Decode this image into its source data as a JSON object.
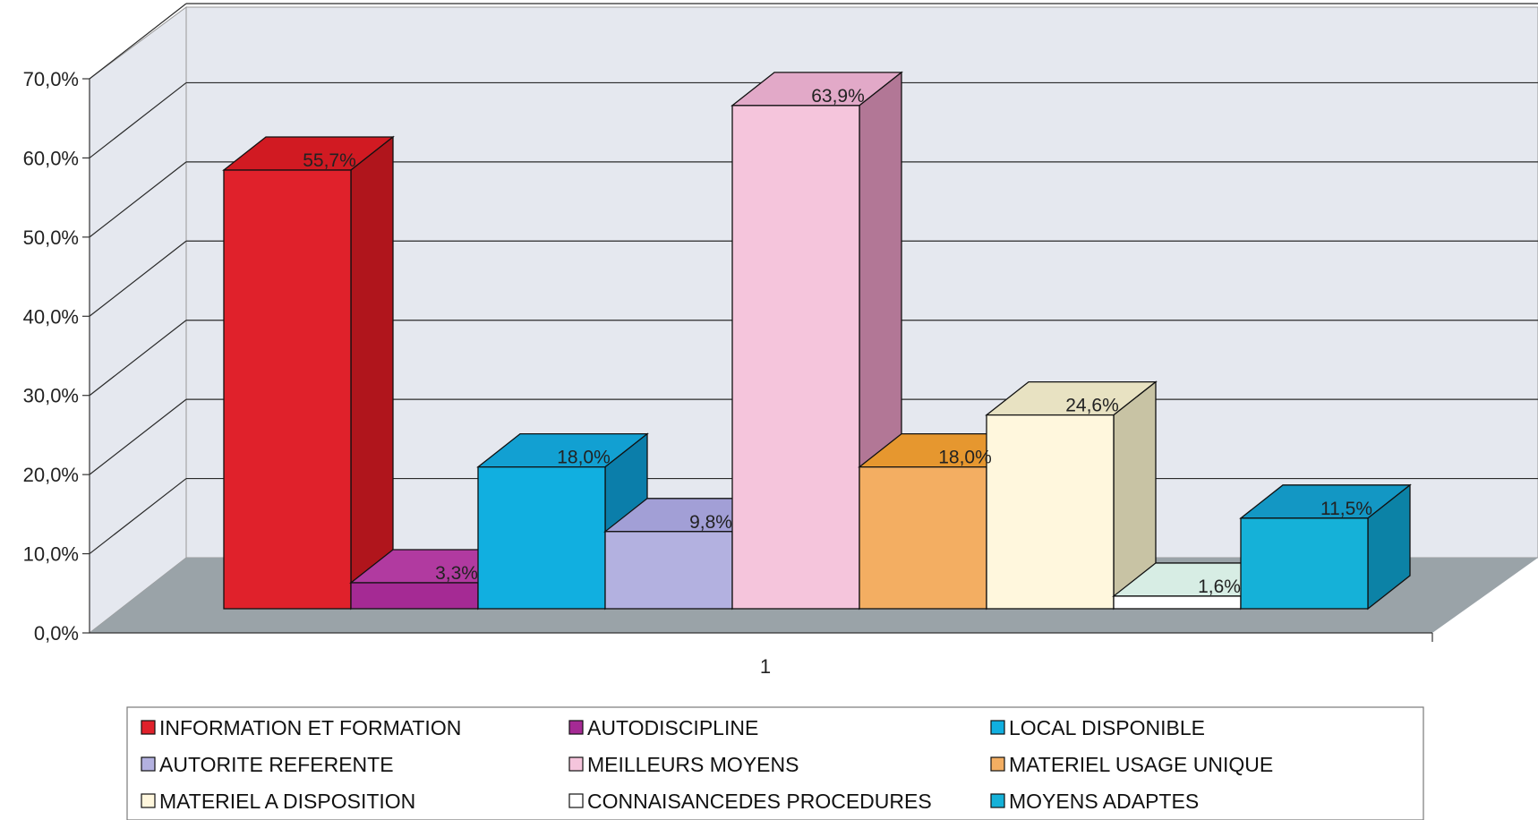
{
  "chart_data": {
    "type": "bar",
    "categories": [
      "1"
    ],
    "series": [
      {
        "name": "INFORMATION ET FORMATION",
        "value": 55.7,
        "label": "55,7%",
        "color": "#e0212b",
        "side": "#b0151c",
        "top": "#d11a22"
      },
      {
        "name": "AUTODISCIPLINE",
        "value": 3.3,
        "label": "3,3%",
        "color": "#a52a94",
        "side": "#7a1c6e",
        "top": "#b13aa0"
      },
      {
        "name": "LOCAL DISPONIBLE",
        "value": 18.0,
        "label": "18,0%",
        "color": "#11afe0",
        "side": "#0b7eaa",
        "top": "#12a0d2"
      },
      {
        "name": "AUTORITE REFERENTE",
        "value": 9.8,
        "label": "9,8%",
        "color": "#b3b1e0",
        "side": "#8a87c0",
        "top": "#a29fd6"
      },
      {
        "name": "MEILLEURS MOYENS",
        "value": 63.9,
        "label": "63,9%",
        "color": "#f5c5dc",
        "side": "#b27796",
        "top": "#e2a9c8"
      },
      {
        "name": "MATERIEL USAGE UNIQUE",
        "value": 18.0,
        "label": "18,0%",
        "color": "#f3ae62",
        "side": "#c57f33",
        "top": "#e6972f"
      },
      {
        "name": "MATERIEL A DISPOSITION",
        "value": 24.6,
        "label": "24,6%",
        "color": "#fff7dd",
        "side": "#c8c3a4",
        "top": "#e8e2c2"
      },
      {
        "name": "CONNAISANCEDES PROCEDURES",
        "value": 1.6,
        "label": "1,6%",
        "color": "#ffffff",
        "side": "#bdbdbd",
        "top": "#d7ede4"
      },
      {
        "name": "MOYENS ADAPTES",
        "value": 11.5,
        "label": "11,5%",
        "color": "#15b1d8",
        "side": "#0c82a6",
        "top": "#1397c4"
      }
    ],
    "yticks": [
      "0,0%",
      "10,0%",
      "20,0%",
      "30,0%",
      "40,0%",
      "50,0%",
      "60,0%",
      "70,0%"
    ],
    "ylim": [
      0,
      70
    ],
    "grid": true,
    "legend_position": "bottom",
    "title": "",
    "xlabel": "",
    "ylabel": ""
  },
  "colors": {
    "wall": "#e5e8ef",
    "floor": "#9aa3a8",
    "gridline": "#2a2a2a"
  }
}
